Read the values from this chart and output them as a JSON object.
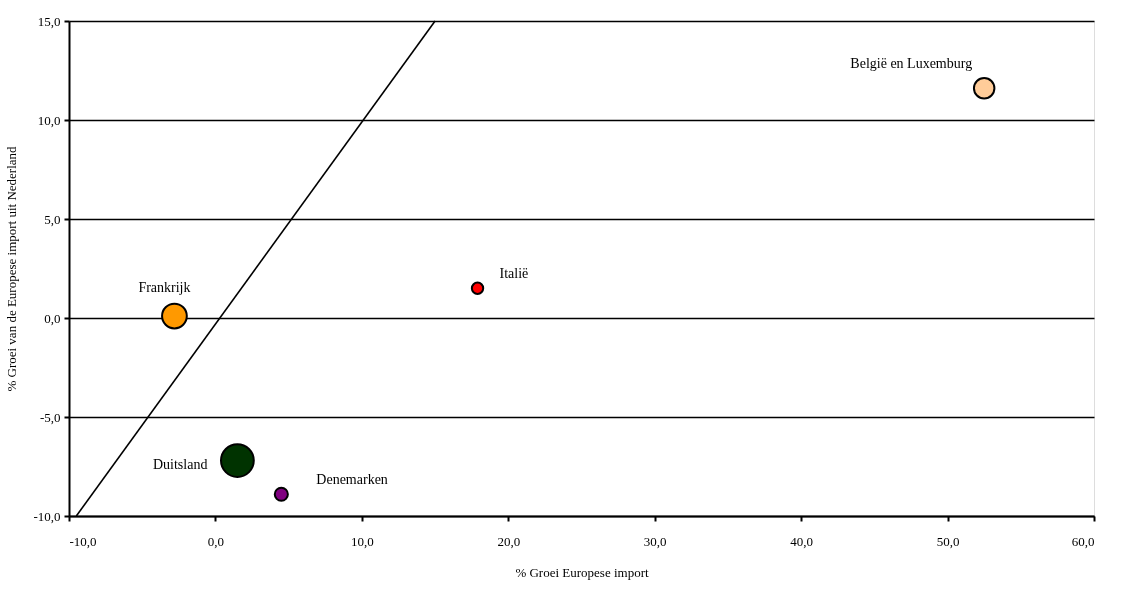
{
  "chart_data": {
    "type": "bubble",
    "xlabel": "%  Groei Europese import",
    "ylabel": "% Groei van de Europese import uit Nederland",
    "xlim": [
      -10,
      60
    ],
    "ylim": [
      -10,
      15
    ],
    "xticks": [
      {
        "value": -10,
        "label": "-10,0"
      },
      {
        "value": 0,
        "label": "0,0"
      },
      {
        "value": 10,
        "label": "10,0"
      },
      {
        "value": 20,
        "label": "20,0"
      },
      {
        "value": 30,
        "label": "30,0"
      },
      {
        "value": 40,
        "label": "40,0"
      },
      {
        "value": 50,
        "label": "50,0"
      },
      {
        "value": 60,
        "label": "60,0"
      }
    ],
    "yticks": [
      {
        "value": -10,
        "label": "-10,0"
      },
      {
        "value": -5,
        "label": "-5,0"
      },
      {
        "value": 0,
        "label": "0,0"
      },
      {
        "value": 5,
        "label": "5,0"
      },
      {
        "value": 10,
        "label": "10,0"
      },
      {
        "value": 15,
        "label": "15,0"
      }
    ],
    "grid": "y",
    "series": [
      {
        "name": "België en Luxemburg",
        "color": "#ffcc99",
        "x": [
          52.5
        ],
        "values": [
          11.6
        ],
        "sizes": [
          0.39
        ]
      },
      {
        "name": "Italië",
        "color": "#ff0000",
        "x": [
          17.9
        ],
        "values": [
          1.5
        ],
        "sizes": [
          0.12
        ]
      },
      {
        "name": "Frankrijk",
        "color": "#ff9900",
        "x": [
          -2.8
        ],
        "values": [
          0.1
        ],
        "sizes": [
          0.57
        ]
      },
      {
        "name": "Duitsland",
        "color": "#003300",
        "x": [
          1.5
        ],
        "values": [
          -7.2
        ],
        "sizes": [
          1
        ]
      },
      {
        "name": "Denemarken",
        "color": "#800080",
        "x": [
          4.5
        ],
        "values": [
          -8.9
        ],
        "sizes": [
          0.16
        ]
      },
      {
        "type": "line",
        "color": "#000000",
        "x": [
          -9.5,
          15
        ],
        "values": [
          -10,
          15
        ],
        "line_style": "solid"
      }
    ]
  }
}
